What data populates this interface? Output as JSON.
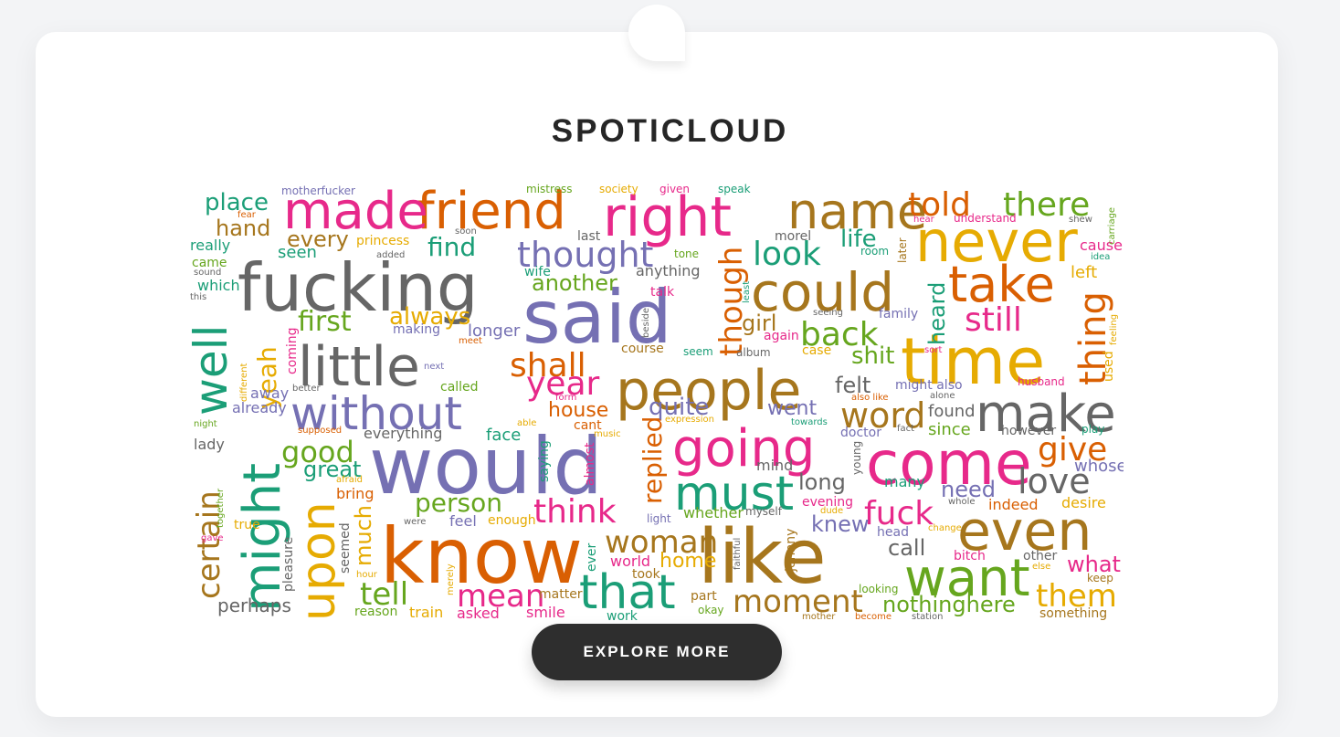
{
  "app": {
    "title": "SPOTICLOUD"
  },
  "cta": {
    "label": "EXPLORE MORE"
  },
  "palette": {
    "teal": "#1b9e77",
    "orange": "#d95f02",
    "purple": "#7570b3",
    "pink": "#e7298a",
    "green": "#66a61e",
    "gold": "#e6ab02",
    "brown": "#a6761d",
    "gray": "#666666"
  },
  "words": [
    {
      "text": "would",
      "color": "purple",
      "size": 86
    },
    {
      "text": "know",
      "color": "orange",
      "size": 84
    },
    {
      "text": "said",
      "color": "purple",
      "size": 80
    },
    {
      "text": "like",
      "color": "brown",
      "size": 82
    },
    {
      "text": "fucking",
      "color": "gray",
      "size": 72
    },
    {
      "text": "time",
      "color": "gold",
      "size": 70
    },
    {
      "text": "people",
      "color": "brown",
      "size": 60
    },
    {
      "text": "come",
      "color": "pink",
      "size": 66
    },
    {
      "text": "little",
      "color": "gray",
      "size": 60
    },
    {
      "text": "could",
      "color": "brown",
      "size": 58
    },
    {
      "text": "never",
      "color": "gold",
      "size": 62
    },
    {
      "text": "going",
      "color": "pink",
      "size": 56
    },
    {
      "text": "without",
      "color": "purple",
      "size": 50
    },
    {
      "text": "might",
      "color": "teal",
      "size": 56
    },
    {
      "text": "make",
      "color": "gray",
      "size": 56
    },
    {
      "text": "right",
      "color": "pink",
      "size": 60
    },
    {
      "text": "friend",
      "color": "orange",
      "size": 56
    },
    {
      "text": "made",
      "color": "pink",
      "size": 56
    },
    {
      "text": "name",
      "color": "brown",
      "size": 54
    },
    {
      "text": "take",
      "color": "orange",
      "size": 54
    },
    {
      "text": "even",
      "color": "brown",
      "size": 60
    },
    {
      "text": "want",
      "color": "green",
      "size": 56
    },
    {
      "text": "that",
      "color": "teal",
      "size": 52
    },
    {
      "text": "must",
      "color": "teal",
      "size": 52
    },
    {
      "text": "upon",
      "color": "gold",
      "size": 52
    },
    {
      "text": "well",
      "color": "teal",
      "size": 50
    },
    {
      "text": "thought",
      "color": "purple",
      "size": 38
    },
    {
      "text": "though",
      "color": "orange",
      "size": 34
    },
    {
      "text": "told",
      "color": "orange",
      "size": 36
    },
    {
      "text": "there",
      "color": "green",
      "size": 36
    },
    {
      "text": "look",
      "color": "teal",
      "size": 36
    },
    {
      "text": "back",
      "color": "green",
      "size": 36
    },
    {
      "text": "still",
      "color": "pink",
      "size": 36
    },
    {
      "text": "thing",
      "color": "orange",
      "size": 40
    },
    {
      "text": "shall",
      "color": "orange",
      "size": 36
    },
    {
      "text": "year",
      "color": "pink",
      "size": 36
    },
    {
      "text": "word",
      "color": "brown",
      "size": 38
    },
    {
      "text": "give",
      "color": "orange",
      "size": 36
    },
    {
      "text": "love",
      "color": "gray",
      "size": 38
    },
    {
      "text": "fuck",
      "color": "pink",
      "size": 36
    },
    {
      "text": "think",
      "color": "pink",
      "size": 36
    },
    {
      "text": "replied",
      "color": "orange",
      "size": 28
    },
    {
      "text": "woman",
      "color": "brown",
      "size": 34
    },
    {
      "text": "moment",
      "color": "brown",
      "size": 34
    },
    {
      "text": "them",
      "color": "gold",
      "size": 34
    },
    {
      "text": "tell",
      "color": "green",
      "size": 34
    },
    {
      "text": "mean",
      "color": "pink",
      "size": 34
    },
    {
      "text": "certain",
      "color": "brown",
      "size": 34
    },
    {
      "text": "good",
      "color": "green",
      "size": 32
    },
    {
      "text": "person",
      "color": "green",
      "size": 28
    },
    {
      "text": "first",
      "color": "green",
      "size": 30
    },
    {
      "text": "yeah",
      "color": "gold",
      "size": 28
    },
    {
      "text": "always",
      "color": "gold",
      "size": 26
    },
    {
      "text": "another",
      "color": "green",
      "size": 24
    },
    {
      "text": "find",
      "color": "teal",
      "size": 28
    },
    {
      "text": "every",
      "color": "brown",
      "size": 24
    },
    {
      "text": "place",
      "color": "teal",
      "size": 26
    },
    {
      "text": "hand",
      "color": "brown",
      "size": 24
    },
    {
      "text": "really",
      "color": "teal",
      "size": 16
    },
    {
      "text": "seen",
      "color": "teal",
      "size": 18
    },
    {
      "text": "life",
      "color": "teal",
      "size": 26
    },
    {
      "text": "girl",
      "color": "brown",
      "size": 24
    },
    {
      "text": "shit",
      "color": "green",
      "size": 26
    },
    {
      "text": "heard",
      "color": "teal",
      "size": 24
    },
    {
      "text": "felt",
      "color": "gray",
      "size": 24
    },
    {
      "text": "went",
      "color": "purple",
      "size": 22
    },
    {
      "text": "quite",
      "color": "purple",
      "size": 26
    },
    {
      "text": "house",
      "color": "orange",
      "size": 22
    },
    {
      "text": "great",
      "color": "teal",
      "size": 24
    },
    {
      "text": "long",
      "color": "gray",
      "size": 24
    },
    {
      "text": "need",
      "color": "purple",
      "size": 24
    },
    {
      "text": "knew",
      "color": "purple",
      "size": 24
    },
    {
      "text": "call",
      "color": "gray",
      "size": 24
    },
    {
      "text": "what",
      "color": "pink",
      "size": 24
    },
    {
      "text": "whose",
      "color": "purple",
      "size": 18
    },
    {
      "text": "nothinghere",
      "color": "green",
      "size": 24
    },
    {
      "text": "much",
      "color": "gold",
      "size": 24
    },
    {
      "text": "perhaps",
      "color": "gray",
      "size": 20
    },
    {
      "text": "home",
      "color": "gold",
      "size": 22
    },
    {
      "text": "face",
      "color": "teal",
      "size": 18
    },
    {
      "text": "found",
      "color": "gray",
      "size": 18
    },
    {
      "text": "since",
      "color": "green",
      "size": 18
    },
    {
      "text": "indeed",
      "color": "orange",
      "size": 16
    },
    {
      "text": "desire",
      "color": "gold",
      "size": 16
    },
    {
      "text": "anything",
      "color": "gray",
      "size": 16
    },
    {
      "text": "longer",
      "color": "purple",
      "size": 18
    },
    {
      "text": "left",
      "color": "gold",
      "size": 18
    },
    {
      "text": "cause",
      "color": "pink",
      "size": 16
    },
    {
      "text": "used",
      "color": "gold",
      "size": 14
    },
    {
      "text": "family",
      "color": "purple",
      "size": 14
    },
    {
      "text": "again",
      "color": "pink",
      "size": 14
    },
    {
      "text": "coming",
      "color": "pink",
      "size": 14
    },
    {
      "text": "making",
      "color": "purple",
      "size": 14
    },
    {
      "text": "princess",
      "color": "gold",
      "size": 14
    },
    {
      "text": "wife",
      "color": "teal",
      "size": 14
    },
    {
      "text": "talk",
      "color": "pink",
      "size": 14
    },
    {
      "text": "course",
      "color": "brown",
      "size": 14
    },
    {
      "text": "seem",
      "color": "teal",
      "size": 12
    },
    {
      "text": "album",
      "color": "gray",
      "size": 12
    },
    {
      "text": "case",
      "color": "gold",
      "size": 14
    },
    {
      "text": "away",
      "color": "purple",
      "size": 16
    },
    {
      "text": "already",
      "color": "purple",
      "size": 16
    },
    {
      "text": "called",
      "color": "green",
      "size": 14
    },
    {
      "text": "lady",
      "color": "gray",
      "size": 16
    },
    {
      "text": "everything",
      "color": "gray",
      "size": 16
    },
    {
      "text": "saying",
      "color": "teal",
      "size": 14
    },
    {
      "text": "almost",
      "color": "pink",
      "size": 14
    },
    {
      "text": "mind",
      "color": "gray",
      "size": 16
    },
    {
      "text": "bring",
      "color": "orange",
      "size": 16
    },
    {
      "text": "enough",
      "color": "gold",
      "size": 14
    },
    {
      "text": "feel",
      "color": "purple",
      "size": 16
    },
    {
      "text": "whether",
      "color": "green",
      "size": 16
    },
    {
      "text": "evening",
      "color": "pink",
      "size": 14
    },
    {
      "text": "head",
      "color": "purple",
      "size": 14
    },
    {
      "text": "many",
      "color": "teal",
      "size": 16
    },
    {
      "text": "world",
      "color": "pink",
      "size": 16
    },
    {
      "text": "took",
      "color": "brown",
      "size": 14
    },
    {
      "text": "matter",
      "color": "brown",
      "size": 14
    },
    {
      "text": "asked",
      "color": "pink",
      "size": 16
    },
    {
      "text": "smile",
      "color": "pink",
      "size": 16
    },
    {
      "text": "work",
      "color": "teal",
      "size": 14
    },
    {
      "text": "part",
      "color": "brown",
      "size": 14
    },
    {
      "text": "okay",
      "color": "green",
      "size": 12
    },
    {
      "text": "bitch",
      "color": "pink",
      "size": 14
    },
    {
      "text": "other",
      "color": "gray",
      "size": 14
    },
    {
      "text": "keep",
      "color": "brown",
      "size": 12
    },
    {
      "text": "something",
      "color": "brown",
      "size": 14
    },
    {
      "text": "train",
      "color": "gold",
      "size": 16
    },
    {
      "text": "reason",
      "color": "green",
      "size": 14
    },
    {
      "text": "pleasure",
      "color": "gray",
      "size": 14
    },
    {
      "text": "seemed",
      "color": "gray",
      "size": 14
    },
    {
      "text": "johnny",
      "color": "brown",
      "size": 14
    },
    {
      "text": "ever",
      "color": "teal",
      "size": 14
    },
    {
      "text": "light",
      "color": "purple",
      "size": 12
    },
    {
      "text": "young",
      "color": "gray",
      "size": 12
    },
    {
      "text": "doctor",
      "color": "purple",
      "size": 14
    },
    {
      "text": "cant",
      "color": "orange",
      "size": 14
    },
    {
      "text": "form",
      "color": "pink",
      "size": 10
    },
    {
      "text": "expression",
      "color": "gold",
      "size": 10
    },
    {
      "text": "towards",
      "color": "teal",
      "size": 10
    },
    {
      "text": "dude",
      "color": "gold",
      "size": 10
    },
    {
      "text": "music",
      "color": "gold",
      "size": 10
    },
    {
      "text": "able",
      "color": "gold",
      "size": 10
    },
    {
      "text": "fact",
      "color": "gray",
      "size": 10
    },
    {
      "text": "however",
      "color": "gray",
      "size": 14
    },
    {
      "text": "play",
      "color": "teal",
      "size": 12
    },
    {
      "text": "might also",
      "color": "purple",
      "size": 14
    },
    {
      "text": "also like",
      "color": "orange",
      "size": 10
    },
    {
      "text": "alone",
      "color": "gray",
      "size": 10
    },
    {
      "text": "husband",
      "color": "pink",
      "size": 12
    },
    {
      "text": "sort",
      "color": "pink",
      "size": 10
    },
    {
      "text": "feeling",
      "color": "gold",
      "size": 10
    },
    {
      "text": "mistress",
      "color": "green",
      "size": 12
    },
    {
      "text": "society",
      "color": "gold",
      "size": 12
    },
    {
      "text": "given",
      "color": "pink",
      "size": 12
    },
    {
      "text": "speak",
      "color": "teal",
      "size": 12
    },
    {
      "text": "motherfucker",
      "color": "purple",
      "size": 12
    },
    {
      "text": "fear",
      "color": "orange",
      "size": 10
    },
    {
      "text": "soon",
      "color": "gray",
      "size": 10
    },
    {
      "text": "last",
      "color": "gray",
      "size": 14
    },
    {
      "text": "morel",
      "color": "gray",
      "size": 14
    },
    {
      "text": "hear",
      "color": "pink",
      "size": 10
    },
    {
      "text": "understand",
      "color": "pink",
      "size": 12
    },
    {
      "text": "shew",
      "color": "gray",
      "size": 10
    },
    {
      "text": "carriage",
      "color": "green",
      "size": 10
    },
    {
      "text": "idea",
      "color": "teal",
      "size": 10
    },
    {
      "text": "came",
      "color": "green",
      "size": 14
    },
    {
      "text": "sound",
      "color": "gray",
      "size": 10
    },
    {
      "text": "which",
      "color": "teal",
      "size": 16
    },
    {
      "text": "this",
      "color": "gray",
      "size": 10
    },
    {
      "text": "added",
      "color": "gray",
      "size": 10
    },
    {
      "text": "tone",
      "color": "green",
      "size": 12
    },
    {
      "text": "room",
      "color": "teal",
      "size": 12
    },
    {
      "text": "later",
      "color": "brown",
      "size": 12
    },
    {
      "text": "least",
      "color": "teal",
      "size": 10
    },
    {
      "text": "beside",
      "color": "gray",
      "size": 10
    },
    {
      "text": "meet",
      "color": "orange",
      "size": 10
    },
    {
      "text": "next",
      "color": "purple",
      "size": 10
    },
    {
      "text": "better",
      "color": "gray",
      "size": 10
    },
    {
      "text": "different",
      "color": "gold",
      "size": 10
    },
    {
      "text": "night",
      "color": "green",
      "size": 10
    },
    {
      "text": "supposed",
      "color": "orange",
      "size": 10
    },
    {
      "text": "afraid",
      "color": "gold",
      "size": 10
    },
    {
      "text": "true",
      "color": "gold",
      "size": 14
    },
    {
      "text": "gave",
      "color": "pink",
      "size": 10
    },
    {
      "text": "together",
      "color": "green",
      "size": 10
    },
    {
      "text": "were",
      "color": "gray",
      "size": 10
    },
    {
      "text": "hour",
      "color": "gold",
      "size": 10
    },
    {
      "text": "merely",
      "color": "gold",
      "size": 10
    },
    {
      "text": "faithful",
      "color": "gray",
      "size": 10
    },
    {
      "text": "myself",
      "color": "gray",
      "size": 12
    },
    {
      "text": "whole",
      "color": "gray",
      "size": 10
    },
    {
      "text": "change",
      "color": "gold",
      "size": 10
    },
    {
      "text": "else",
      "color": "gold",
      "size": 10
    },
    {
      "text": "looking",
      "color": "green",
      "size": 12
    },
    {
      "text": "station",
      "color": "gray",
      "size": 10
    },
    {
      "text": "become",
      "color": "orange",
      "size": 10
    },
    {
      "text": "mother",
      "color": "brown",
      "size": 10
    },
    {
      "text": "seeing",
      "color": "gray",
      "size": 10
    }
  ]
}
